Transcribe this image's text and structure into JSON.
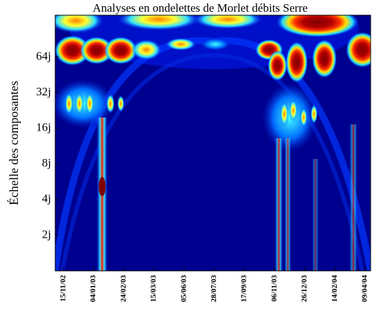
{
  "chart_data": {
    "type": "scalogram",
    "title": "Analyses en ondelettes de Morlet débits Serre",
    "y_label": "Échelle des composantes",
    "categories": [
      "15/11/02",
      "04/01/03",
      "24/02/03",
      "15/03/03",
      "05/06/03",
      "28/07/03",
      "17/09/03",
      "06/11/03",
      "26/12/03",
      "14/02/04",
      "09/04/04"
    ],
    "y_log": true,
    "ylim": [
      1,
      144
    ],
    "yticks": [
      {
        "value": 2,
        "label": "2j"
      },
      {
        "value": 4,
        "label": "4j"
      },
      {
        "value": 8,
        "label": "8j"
      },
      {
        "value": 16,
        "label": "16j"
      },
      {
        "value": 32,
        "label": "32j"
      },
      {
        "value": 64,
        "label": "64j"
      }
    ]
  }
}
